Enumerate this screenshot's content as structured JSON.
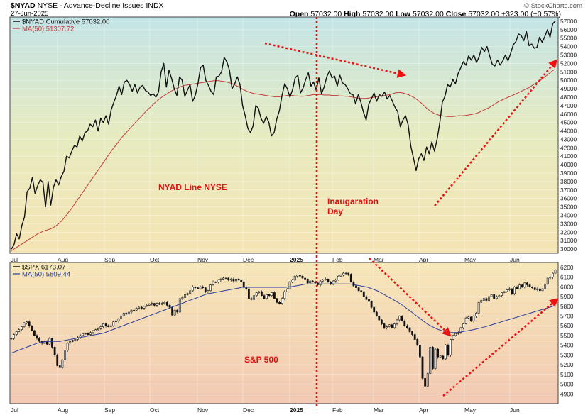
{
  "header": {
    "symbol": "$NYAD",
    "description": "NYSE - Advance-Decline Issues INDX",
    "date": "27-Jun-2025",
    "open_label": "Open",
    "open_value": "57032.00",
    "high_label": "High",
    "high_value": "57032.00",
    "low_label": "Low",
    "low_value": "57032.00",
    "close_label": "Close",
    "close_value": "57032.00",
    "change": "+323.00 (+0.57%)",
    "watermark": "© StockCharts.com"
  },
  "chart_data": [
    {
      "type": "line",
      "legend": {
        "main": "$NYAD Cumulative 57032.00",
        "ma": "MA(50) 51307.72",
        "placement": "top-left"
      },
      "x_ticks": [
        "Jul",
        "Aug",
        "Sep",
        "Oct",
        "Nov",
        "Dec",
        "2025",
        "Feb",
        "Mar",
        "Apr",
        "May",
        "Jun"
      ],
      "ylim": [
        29500,
        57500
      ],
      "y_ticks": [
        30000,
        31000,
        32000,
        33000,
        34000,
        35000,
        36000,
        37000,
        38000,
        39000,
        40000,
        41000,
        42000,
        43000,
        44000,
        45000,
        46000,
        47000,
        48000,
        49000,
        50000,
        51000,
        52000,
        53000,
        54000,
        55000,
        56000,
        57000
      ],
      "series": [
        {
          "values": [
            30000,
            30500,
            31800,
            31200,
            32800,
            33800,
            36800,
            37200,
            38500,
            36600,
            37500,
            38200,
            37900,
            35000,
            38000,
            35200,
            37300,
            38200,
            37600,
            38600,
            39200,
            41000,
            40800,
            41600,
            42300,
            42100,
            43400,
            42800,
            43800,
            44000,
            44800,
            44500,
            45300,
            44000,
            45500,
            45000,
            45800,
            44800,
            46500,
            47400,
            48200,
            49300,
            48300,
            49800,
            50000,
            49500,
            48700,
            49500,
            48500,
            49200,
            49400,
            48800,
            48600,
            48200,
            48400,
            48000,
            48600,
            51000,
            52000,
            49200,
            51200,
            50200,
            49000,
            48200,
            50400,
            50000,
            48100,
            48800,
            49500,
            47500,
            48200,
            49600,
            51500,
            51800,
            50000,
            49400,
            48700,
            48300,
            50400,
            50500,
            51000,
            52700,
            52200,
            51200,
            49000,
            49600,
            50400,
            49500,
            47000,
            45800,
            44300,
            43800,
            44600,
            47000,
            46700,
            45500,
            44900,
            45700,
            45000,
            43400,
            43800,
            45400,
            46400,
            48200,
            49600,
            49000,
            48000,
            48900,
            50300,
            50600,
            48500,
            49100,
            50100,
            50900,
            49300,
            49800,
            48800,
            50300,
            48400,
            49200,
            50400,
            51100,
            50300,
            50500,
            49300,
            50600,
            49700,
            49500,
            49000,
            48400,
            48300,
            47200,
            48300,
            47400,
            46200,
            45300,
            47200,
            47800,
            48500,
            47500,
            48300,
            48100,
            48600,
            47800,
            48200,
            47500,
            46800,
            46300,
            44500,
            45300,
            45800,
            44700,
            42200,
            40800,
            39300,
            40700,
            41300,
            40500,
            42100,
            41300,
            42700,
            41600,
            43000,
            44900,
            47400,
            48100,
            49500,
            49200,
            50100,
            49600,
            50800,
            51500,
            52200,
            51800,
            52900,
            52400,
            53000,
            52100,
            52800,
            53900,
            53400,
            54000,
            52900,
            51900,
            51700,
            52400,
            51800,
            52300,
            53000,
            52300,
            53200,
            54200,
            54600,
            55500,
            55300,
            54700,
            55800,
            54100,
            54300,
            53800,
            53900,
            55100,
            54500,
            55200,
            56000,
            55100,
            56700,
            57032
          ]
        },
        {
          "values": [
            29800,
            30000,
            30200,
            30400,
            30600,
            30800,
            31000,
            31200,
            31400,
            31600,
            31800,
            31950,
            32100,
            32200,
            32300,
            32400,
            32550,
            32750,
            33000,
            33300,
            33650,
            34050,
            34450,
            34850,
            35300,
            35750,
            36200,
            36650,
            37100,
            37550,
            38000,
            38450,
            38900,
            39350,
            39800,
            40250,
            40700,
            41150,
            41600,
            42000,
            42400,
            42800,
            43200,
            43550,
            43900,
            44250,
            44600,
            44950,
            45250,
            45550,
            45900,
            46250,
            46550,
            46850,
            47150,
            47450,
            47700,
            47950,
            48150,
            48350,
            48550,
            48750,
            48900,
            49050,
            49200,
            49300,
            49400,
            49450,
            49500,
            49550,
            49600,
            49650,
            49700,
            49750,
            49800,
            49850,
            49900,
            49950,
            49950,
            49950,
            49900,
            49850,
            49800,
            49700,
            49600,
            49450,
            49300,
            49150,
            48950,
            48800,
            48650,
            48550,
            48450,
            48400,
            48350,
            48300,
            48250,
            48200,
            48150,
            48100,
            48050,
            48050,
            48050,
            48100,
            48150,
            48200,
            48200,
            48200,
            48150,
            48150,
            48100,
            48100,
            48150,
            48200,
            48250,
            48300,
            48300,
            48300,
            48300,
            48250,
            48250,
            48250,
            48200,
            48200,
            48200,
            48150,
            48150,
            48100,
            48100,
            48050,
            48000,
            47950,
            47900,
            47850,
            47850,
            47850,
            47900,
            47950,
            48000,
            48050,
            48100,
            48150,
            48200,
            48250,
            48300,
            48400,
            48500,
            48550,
            48550,
            48500,
            48400,
            48300,
            48150,
            48000,
            47800,
            47550,
            47300,
            47000,
            46700,
            46450,
            46250,
            46050,
            45950,
            45850,
            45800,
            45750,
            45700,
            45700,
            45700,
            45750,
            45800,
            45800,
            45800,
            45850,
            45900,
            45950,
            46000,
            46100,
            46200,
            46350,
            46500,
            46650,
            46800,
            47000,
            47200,
            47400,
            47550,
            47700,
            47850,
            48000,
            48100,
            48250,
            48400,
            48550,
            48700,
            48850,
            49000,
            49150,
            49350,
            49550,
            49750,
            49950,
            50150,
            50400,
            50650,
            50900,
            51150,
            51307.72
          ]
        }
      ],
      "annotations": {
        "series_label": "NYAD Line NYSE",
        "event_label_line1": "Inaugaration",
        "event_label_line2": "Day"
      }
    },
    {
      "type": "candlestick",
      "legend": {
        "main": "$SPX 6173.07",
        "ma": "MA(50) 5809.44",
        "placement": "top-left"
      },
      "x_ticks": [
        "Jul",
        "Aug",
        "Sep",
        "Oct",
        "Nov",
        "Dec",
        "2025",
        "Feb",
        "Mar",
        "Apr",
        "May",
        "Jun"
      ],
      "ylim": [
        4800,
        6250
      ],
      "y_ticks": [
        4900,
        5000,
        5100,
        5200,
        5300,
        5400,
        5500,
        5600,
        5700,
        5800,
        5900,
        6000,
        6100,
        6200
      ],
      "series": [
        {
          "values": [
            5470,
            5510,
            5540,
            5560,
            5590,
            5630,
            5640,
            5600,
            5550,
            5500,
            5470,
            5440,
            5420,
            5440,
            5410,
            5470,
            5380,
            5300,
            5190,
            5170,
            5250,
            5350,
            5420,
            5440,
            5450,
            5460,
            5480,
            5500,
            5520,
            5520,
            5510,
            5530,
            5550,
            5560,
            5570,
            5590,
            5620,
            5600,
            5590,
            5600,
            5640,
            5650,
            5670,
            5700,
            5730,
            5720,
            5740,
            5760,
            5760,
            5780,
            5790,
            5780,
            5800,
            5810,
            5820,
            5830,
            5810,
            5830,
            5820,
            5830,
            5840,
            5810,
            5790,
            5710,
            5760,
            5740,
            5880,
            5890,
            5920,
            5930,
            5960,
            6000,
            5990,
            5980,
            6000,
            5990,
            5950,
            5960,
            6020,
            6050,
            6050,
            6070,
            6080,
            6090,
            6090,
            6070,
            6080,
            6060,
            6080,
            6070,
            6050,
            6000,
            5980,
            5880,
            5870,
            5910,
            5940,
            5950,
            5910,
            5880,
            5920,
            5910,
            5940,
            5880,
            5840,
            5830,
            5880,
            5950,
            5980,
            6050,
            6070,
            6110,
            6120,
            6110,
            6090,
            6080,
            6040,
            6060,
            6050,
            6040,
            6020,
            6060,
            6070,
            6080,
            6050,
            6030,
            6060,
            6070,
            6110,
            6120,
            6140,
            6140,
            6130,
            6050,
            6010,
            5990,
            5960,
            5950,
            5900,
            5870,
            5850,
            5790,
            5740,
            5700,
            5660,
            5620,
            5580,
            5590,
            5610,
            5580,
            5620,
            5660,
            5700,
            5650,
            5600,
            5580,
            5540,
            5510,
            5460,
            5400,
            5280,
            5060,
            4980,
            5110,
            5380,
            5160,
            5360,
            5280,
            5290,
            5260,
            5400,
            5300,
            5460,
            5500,
            5520,
            5530,
            5580,
            5620,
            5680,
            5690,
            5650,
            5700,
            5730,
            5840,
            5860,
            5880,
            5860,
            5900,
            5920,
            5880,
            5900,
            5910,
            5940,
            5950,
            5970,
            5980,
            5930,
            6000,
            5980,
            6020,
            6000,
            6040,
            6020,
            6000,
            5990,
            5970,
            5980,
            5960,
            5980,
            6030,
            6090,
            6100,
            6140,
            6173.07
          ]
        },
        {
          "values": [
            5320,
            5330,
            5340,
            5350,
            5360,
            5370,
            5380,
            5390,
            5400,
            5410,
            5420,
            5425,
            5430,
            5435,
            5440,
            5440,
            5440,
            5440,
            5440,
            5440,
            5445,
            5450,
            5455,
            5460,
            5465,
            5470,
            5475,
            5480,
            5485,
            5490,
            5495,
            5500,
            5505,
            5510,
            5515,
            5520,
            5525,
            5535,
            5545,
            5555,
            5565,
            5575,
            5585,
            5595,
            5605,
            5615,
            5625,
            5635,
            5645,
            5655,
            5665,
            5675,
            5685,
            5695,
            5705,
            5715,
            5725,
            5735,
            5745,
            5755,
            5765,
            5775,
            5785,
            5795,
            5805,
            5815,
            5825,
            5835,
            5845,
            5855,
            5865,
            5875,
            5885,
            5895,
            5905,
            5915,
            5925,
            5930,
            5935,
            5940,
            5945,
            5950,
            5955,
            5960,
            5965,
            5970,
            5975,
            5980,
            5985,
            5990,
            5995,
            5995,
            5995,
            5995,
            5995,
            5995,
            5995,
            5995,
            5995,
            5995,
            5995,
            5995,
            5995,
            5995,
            5995,
            5995,
            5995,
            5995,
            6000,
            6000,
            6005,
            6010,
            6015,
            6020,
            6025,
            6030,
            6030,
            6030,
            6030,
            6030,
            6030,
            6030,
            6030,
            6030,
            6030,
            6030,
            6030,
            6030,
            6030,
            6030,
            6030,
            6030,
            6030,
            6025,
            6020,
            6015,
            6010,
            6005,
            6000,
            5995,
            5985,
            5975,
            5965,
            5955,
            5940,
            5925,
            5910,
            5895,
            5880,
            5865,
            5850,
            5835,
            5820,
            5800,
            5780,
            5760,
            5740,
            5720,
            5700,
            5680,
            5660,
            5640,
            5620,
            5605,
            5590,
            5578,
            5566,
            5556,
            5548,
            5540,
            5535,
            5530,
            5530,
            5530,
            5532,
            5535,
            5540,
            5545,
            5550,
            5555,
            5560,
            5566,
            5572,
            5578,
            5585,
            5592,
            5600,
            5608,
            5616,
            5624,
            5632,
            5640,
            5648,
            5656,
            5664,
            5672,
            5680,
            5688,
            5696,
            5704,
            5712,
            5720,
            5728,
            5736,
            5744,
            5752,
            5760,
            5768,
            5776,
            5784,
            5792,
            5800,
            5809.44
          ]
        }
      ],
      "annotations": {
        "series_label": "S&P 500"
      }
    }
  ]
}
